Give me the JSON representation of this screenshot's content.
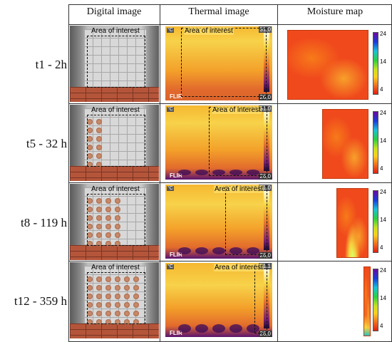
{
  "headers": {
    "digital": "Digital image",
    "thermal": "Thermal image",
    "moisture": "Moisture map"
  },
  "rows": [
    {
      "label": "t1 - 2h",
      "aoi_digital": "Area of interest",
      "aoi_thermal": "Area of interest",
      "therm_max": "31,0",
      "therm_min": "26,0",
      "unit": "°C",
      "brand": "FLIR",
      "cb_max": "24",
      "cb_mid": "14",
      "cb_min": "4"
    },
    {
      "label": "t5 - 32 h",
      "aoi_digital": "Area of interest",
      "aoi_thermal": "Area of interest",
      "therm_max": "31,0",
      "therm_min": "26,0",
      "unit": "°C",
      "brand": "FLIR",
      "cb_max": "24",
      "cb_mid": "14",
      "cb_min": "4"
    },
    {
      "label": "t8 - 119 h",
      "aoi_digital": "Area of interest",
      "aoi_thermal": "Area of interest",
      "therm_max": "31,0",
      "therm_min": "26,0",
      "unit": "°C",
      "brand": "FLIR",
      "cb_max": "24",
      "cb_mid": "14",
      "cb_min": "4"
    },
    {
      "label": "t12 - 359 h",
      "aoi_digital": "Area of interest",
      "aoi_thermal": "Area of interest",
      "therm_max": "31,1",
      "therm_min": "26,0",
      "unit": "°C",
      "brand": "FLIR",
      "cb_max": "24",
      "cb_mid": "14",
      "cb_min": "4"
    }
  ],
  "colors": {
    "moisture_base": "#f04a1c",
    "brick": "#b4553a",
    "thermal_yellow": "#f7d640",
    "thermal_purple": "#5a1470"
  }
}
